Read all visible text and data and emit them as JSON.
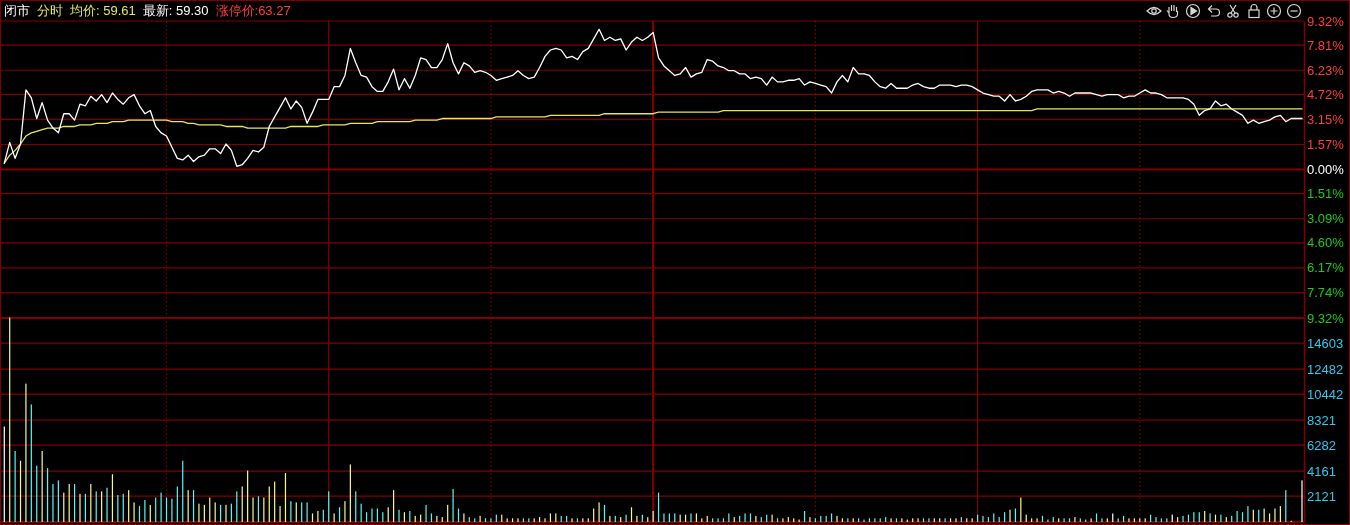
{
  "chart_data": [
    {
      "type": "line",
      "title": "分时",
      "annotations": [
        "闭市",
        "涨停价:63.27"
      ],
      "legend": "top left",
      "tick_labels": "y",
      "grid": "y",
      "categories": [
        null,
        null,
        null,
        null,
        null,
        null,
        null,
        null,
        null,
        null,
        null,
        null,
        null,
        null,
        null,
        null,
        null,
        null,
        null,
        null,
        null,
        null,
        null,
        null,
        null,
        null,
        null,
        null,
        null,
        null,
        null,
        null,
        null,
        null,
        null,
        null,
        null,
        null,
        null,
        null,
        null,
        null,
        null,
        null,
        null,
        null,
        null,
        null,
        null,
        null,
        null,
        null,
        null,
        null,
        null,
        null,
        null,
        null,
        null,
        null,
        null,
        null,
        null,
        null,
        null,
        null,
        null,
        null,
        null,
        null,
        null,
        null,
        null,
        null,
        null,
        null,
        null,
        null,
        null,
        null,
        null,
        null,
        null,
        null,
        null,
        null,
        null,
        null,
        null,
        null,
        null,
        null,
        null,
        null,
        null,
        null,
        null,
        null,
        null,
        null,
        null,
        null,
        null,
        null,
        null,
        null,
        null,
        null,
        null,
        null,
        null,
        null,
        null,
        null,
        null,
        null,
        null,
        null,
        null,
        null,
        null,
        null,
        null,
        null,
        null,
        null,
        null,
        null,
        null,
        null,
        null,
        null,
        null,
        null,
        null,
        null,
        null,
        null,
        null,
        null,
        null,
        null,
        null,
        null,
        null,
        null,
        null,
        null,
        null,
        null,
        null,
        null,
        null,
        null,
        null,
        null,
        null,
        null,
        null,
        null,
        null,
        null,
        null,
        null,
        null,
        null,
        null,
        null,
        null,
        null,
        null,
        null,
        null,
        null,
        null,
        null,
        null,
        null,
        null,
        null,
        null,
        null,
        null,
        null,
        null,
        null,
        null,
        null,
        null,
        null,
        null,
        null,
        null,
        null,
        null,
        null,
        null,
        null,
        null,
        null,
        null,
        null,
        null,
        null,
        null,
        null,
        null,
        null,
        null,
        null,
        null,
        null,
        null,
        null,
        null,
        null,
        null,
        null,
        null,
        null,
        null,
        null,
        null,
        null,
        null,
        null,
        null,
        null,
        null,
        null,
        null,
        null,
        null,
        null,
        null,
        null,
        null,
        null,
        null,
        null,
        null
      ],
      "series": [
        {
          "name": "均价: 59.61",
          "color": "#e6e65c",
          "values": [
            0.4,
            0.9,
            1.2,
            1.6,
            2.1,
            2.3,
            2.4,
            2.5,
            2.6,
            2.6,
            2.6,
            2.7,
            2.7,
            2.7,
            2.8,
            2.8,
            2.8,
            2.9,
            2.9,
            2.9,
            3.0,
            3.0,
            3.0,
            3.1,
            3.1,
            3.1,
            3.1,
            3.1,
            3.1,
            3.1,
            3.1,
            3.0,
            3.0,
            3.0,
            2.9,
            2.9,
            2.8,
            2.8,
            2.8,
            2.8,
            2.8,
            2.7,
            2.7,
            2.7,
            2.7,
            2.6,
            2.6,
            2.6,
            2.6,
            2.6,
            2.6,
            2.6,
            2.6,
            2.7,
            2.7,
            2.7,
            2.7,
            2.7,
            2.7,
            2.8,
            2.8,
            2.8,
            2.8,
            2.8,
            2.9,
            2.9,
            2.9,
            2.9,
            2.9,
            3.0,
            3.0,
            3.0,
            3.0,
            3.0,
            3.0,
            3.0,
            3.1,
            3.1,
            3.1,
            3.1,
            3.1,
            3.2,
            3.2,
            3.2,
            3.2,
            3.2,
            3.2,
            3.2,
            3.2,
            3.2,
            3.2,
            3.3,
            3.3,
            3.3,
            3.3,
            3.3,
            3.3,
            3.3,
            3.3,
            3.3,
            3.3,
            3.4,
            3.4,
            3.4,
            3.4,
            3.4,
            3.4,
            3.4,
            3.4,
            3.4,
            3.4,
            3.5,
            3.5,
            3.5,
            3.5,
            3.5,
            3.5,
            3.5,
            3.5,
            3.5,
            3.5,
            3.6,
            3.6,
            3.6,
            3.6,
            3.6,
            3.6,
            3.6,
            3.6,
            3.6,
            3.6,
            3.6,
            3.6,
            3.7,
            3.7,
            3.7,
            3.7,
            3.7,
            3.7,
            3.7,
            3.7,
            3.7,
            3.7,
            3.7,
            3.7,
            3.7,
            3.7,
            3.7,
            3.7,
            3.7,
            3.7,
            3.7,
            3.7,
            3.7,
            3.7,
            3.7,
            3.7,
            3.7,
            3.7,
            3.7,
            3.7,
            3.7,
            3.7,
            3.7,
            3.7,
            3.7,
            3.7,
            3.7,
            3.7,
            3.7,
            3.7,
            3.7,
            3.7,
            3.7,
            3.7,
            3.7,
            3.7,
            3.7,
            3.7,
            3.7,
            3.7,
            3.7,
            3.7,
            3.7,
            3.7,
            3.7,
            3.7,
            3.7,
            3.7,
            3.7,
            3.7,
            3.8,
            3.8,
            3.8,
            3.8,
            3.8,
            3.8,
            3.8,
            3.8,
            3.8,
            3.8,
            3.8,
            3.8,
            3.8,
            3.8,
            3.8,
            3.8,
            3.8,
            3.8,
            3.8,
            3.8,
            3.8,
            3.8,
            3.8,
            3.8,
            3.8,
            3.8,
            3.8,
            3.8,
            3.8,
            3.8,
            3.8,
            3.8,
            3.8,
            3.8,
            3.8,
            3.8,
            3.8,
            3.8,
            3.8,
            3.8,
            3.8,
            3.8,
            3.8,
            3.8,
            3.8,
            3.8,
            3.8,
            3.8,
            3.8,
            3.8
          ]
        },
        {
          "name": "最新: 59.30",
          "color": "#ffffff",
          "values": [
            0.4,
            1.7,
            0.7,
            1.6,
            5.0,
            4.5,
            3.2,
            4.2,
            3.1,
            2.6,
            2.3,
            3.5,
            3.5,
            3.1,
            4.1,
            4.0,
            4.6,
            4.3,
            4.7,
            4.2,
            4.8,
            4.4,
            4.1,
            4.5,
            4.7,
            4.0,
            3.5,
            3.7,
            2.7,
            2.3,
            2.1,
            1.4,
            0.7,
            0.6,
            0.9,
            0.5,
            0.8,
            0.9,
            1.3,
            1.3,
            1.0,
            1.6,
            1.2,
            0.2,
            0.3,
            0.7,
            1.2,
            1.1,
            1.4,
            2.7,
            3.3,
            3.9,
            4.5,
            3.8,
            4.3,
            3.9,
            2.9,
            3.6,
            4.4,
            4.4,
            4.4,
            5.2,
            5.2,
            5.9,
            7.6,
            6.7,
            5.9,
            5.8,
            5.2,
            4.9,
            4.9,
            5.5,
            6.3,
            5.0,
            5.7,
            5.1,
            5.9,
            7.0,
            6.9,
            6.4,
            6.4,
            6.9,
            7.9,
            6.7,
            6.0,
            6.7,
            6.5,
            6.1,
            6.2,
            6.1,
            5.9,
            5.6,
            5.7,
            5.8,
            5.9,
            6.2,
            5.9,
            5.7,
            5.8,
            6.4,
            7.1,
            7.5,
            7.6,
            7.5,
            7.0,
            7.1,
            6.9,
            7.4,
            7.6,
            8.2,
            8.8,
            8.1,
            8.3,
            8.1,
            8.2,
            7.5,
            8.0,
            8.3,
            8.1,
            8.3,
            8.6,
            7.0,
            6.5,
            6.2,
            5.9,
            6.0,
            6.4,
            5.8,
            6.0,
            6.1,
            6.9,
            6.8,
            6.5,
            6.4,
            6.2,
            6.2,
            6.0,
            6.0,
            5.7,
            5.8,
            5.7,
            5.3,
            5.8,
            5.5,
            5.5,
            5.6,
            5.6,
            5.7,
            5.3,
            5.5,
            5.4,
            5.3,
            5.2,
            4.8,
            5.5,
            5.9,
            5.5,
            6.4,
            6.0,
            6.0,
            5.9,
            5.5,
            5.2,
            5.1,
            5.4,
            5.1,
            5.1,
            5.1,
            5.3,
            5.4,
            5.2,
            5.1,
            5.1,
            5.3,
            5.3,
            5.3,
            5.2,
            5.3,
            5.3,
            5.2,
            5.0,
            4.8,
            4.7,
            4.6,
            4.6,
            4.3,
            4.7,
            4.3,
            4.4,
            4.6,
            4.9,
            5.0,
            5.0,
            5.0,
            4.8,
            4.9,
            4.8,
            4.6,
            4.8,
            4.8,
            4.8,
            4.8,
            4.7,
            4.6,
            4.7,
            4.7,
            4.7,
            4.5,
            4.6,
            4.6,
            4.8,
            5.0,
            4.8,
            4.8,
            4.7,
            4.5,
            4.5,
            4.5,
            4.5,
            4.4,
            4.1,
            3.4,
            3.7,
            3.8,
            4.3,
            4.0,
            4.1,
            3.8,
            3.6,
            3.4,
            2.9,
            3.1,
            2.9,
            3.0,
            3.1,
            3.3,
            3.4,
            3.0,
            3.2,
            3.2,
            3.2
          ]
        }
      ],
      "ylim": [
        -9.32,
        9.32
      ],
      "yticks": [
        {
          "value": 9.32,
          "label": "9.32%"
        },
        {
          "value": 7.81,
          "label": "7.81%"
        },
        {
          "value": 6.23,
          "label": "6.23%"
        },
        {
          "value": 4.72,
          "label": "4.72%"
        },
        {
          "value": 3.15,
          "label": "3.15%"
        },
        {
          "value": 1.57,
          "label": "1.57%"
        },
        {
          "value": 0,
          "label": "0.00%"
        },
        {
          "value": -1.51,
          "label": "1.51%"
        },
        {
          "value": -3.09,
          "label": "3.09%"
        },
        {
          "value": -4.6,
          "label": "4.60%"
        },
        {
          "value": -6.17,
          "label": "6.17%"
        },
        {
          "value": -7.74,
          "label": "7.74%"
        },
        {
          "value": -9.32,
          "label": "9.32%"
        }
      ]
    },
    {
      "type": "bar",
      "tick_labels": "y",
      "grid": "y",
      "categories": [
        null,
        null,
        null,
        null,
        null,
        null,
        null,
        null,
        null,
        null,
        null,
        null,
        null,
        null,
        null,
        null,
        null,
        null,
        null,
        null,
        null,
        null,
        null,
        null,
        null,
        null,
        null,
        null,
        null,
        null,
        null,
        null,
        null,
        null,
        null,
        null,
        null,
        null,
        null,
        null,
        null,
        null,
        null,
        null,
        null,
        null,
        null,
        null,
        null,
        null,
        null,
        null,
        null,
        null,
        null,
        null,
        null,
        null,
        null,
        null,
        null,
        null,
        null,
        null,
        null,
        null,
        null,
        null,
        null,
        null,
        null,
        null,
        null,
        null,
        null,
        null,
        null,
        null,
        null,
        null,
        null,
        null,
        null,
        null,
        null,
        null,
        null,
        null,
        null,
        null,
        null,
        null,
        null,
        null,
        null,
        null,
        null,
        null,
        null,
        null,
        null,
        null,
        null,
        null,
        null,
        null,
        null,
        null,
        null,
        null,
        null,
        null,
        null,
        null,
        null,
        null,
        null,
        null,
        null,
        null,
        null,
        null,
        null,
        null,
        null,
        null,
        null,
        null,
        null,
        null,
        null,
        null,
        null,
        null,
        null,
        null,
        null,
        null,
        null,
        null,
        null,
        null,
        null,
        null,
        null,
        null,
        null,
        null,
        null,
        null,
        null,
        null,
        null,
        null,
        null,
        null,
        null,
        null,
        null,
        null,
        null,
        null,
        null,
        null,
        null,
        null,
        null,
        null,
        null,
        null,
        null,
        null,
        null,
        null,
        null,
        null,
        null,
        null,
        null,
        null,
        null,
        null,
        null,
        null,
        null,
        null,
        null,
        null,
        null,
        null,
        null,
        null,
        null,
        null,
        null,
        null,
        null,
        null,
        null,
        null,
        null,
        null,
        null,
        null,
        null,
        null,
        null,
        null,
        null,
        null,
        null,
        null,
        null,
        null,
        null,
        null,
        null,
        null,
        null,
        null,
        null,
        null,
        null,
        null,
        null,
        null,
        null,
        null,
        null,
        null,
        null,
        null,
        null,
        null,
        null,
        null,
        null,
        null,
        null,
        null,
        null
      ],
      "values": [
        7800,
        16700,
        5800,
        5000,
        11300,
        9600,
        4600,
        5800,
        4400,
        3100,
        3400,
        2400,
        3100,
        3100,
        2300,
        2300,
        3100,
        2500,
        2500,
        2800,
        3900,
        2200,
        2300,
        2600,
        1600,
        1300,
        1800,
        1400,
        2000,
        2400,
        2000,
        1900,
        2900,
        5000,
        2600,
        2600,
        1500,
        1400,
        2000,
        1600,
        1400,
        1400,
        1500,
        2500,
        2900,
        4200,
        2000,
        2100,
        2000,
        2900,
        3300,
        1300,
        4000,
        1700,
        1600,
        1600,
        1600,
        700,
        900,
        1000,
        2500,
        700,
        1200,
        1700,
        4700,
        2500,
        1500,
        800,
        1100,
        1100,
        800,
        1200,
        2600,
        1000,
        800,
        900,
        500,
        600,
        1400,
        700,
        500,
        400,
        1400,
        2700,
        1100,
        700,
        400,
        300,
        500,
        300,
        300,
        600,
        600,
        300,
        300,
        300,
        300,
        300,
        300,
        400,
        300,
        700,
        700,
        500,
        500,
        300,
        300,
        300,
        300,
        1100,
        1600,
        1400,
        500,
        500,
        400,
        600,
        1200,
        500,
        600,
        400,
        900,
        2400,
        700,
        700,
        700,
        600,
        600,
        700,
        700,
        300,
        500,
        300,
        300,
        300,
        700,
        400,
        500,
        700,
        700,
        500,
        400,
        600,
        600,
        300,
        300,
        400,
        300,
        200,
        900,
        400,
        300,
        500,
        500,
        700,
        500,
        300,
        300,
        300,
        300,
        200,
        300,
        300,
        300,
        400,
        300,
        300,
        300,
        200,
        300,
        300,
        300,
        300,
        300,
        300,
        300,
        300,
        300,
        400,
        300,
        300,
        600,
        500,
        400,
        700,
        400,
        800,
        1000,
        1100,
        2000,
        600,
        300,
        300,
        500,
        200,
        400,
        300,
        300,
        300,
        400,
        300,
        200,
        300,
        700,
        300,
        300,
        700,
        300,
        500,
        300,
        300,
        300,
        300,
        600,
        400,
        300,
        300,
        600,
        400,
        500,
        600,
        800,
        800,
        900,
        700,
        600,
        600,
        400,
        500,
        900,
        800,
        1300,
        1000,
        1000,
        1100,
        700,
        1100,
        1300,
        2600,
        100,
        0,
        3400
      ],
      "colors": [
        "#ffffff",
        "#fafa82",
        "#54f8f8",
        "#fafa82",
        "#fafa82",
        "#54f8f8",
        "#54f8f8",
        "#fafa82",
        "#54f8f8",
        "#54f8f8",
        "#54f8f8",
        "#fafa82",
        "#fafa82",
        "#54f8f8",
        "#fafa82",
        "#54f8f8",
        "#fafa82",
        "#54f8f8",
        "#fafa82",
        "#54f8f8",
        "#fafa82",
        "#54f8f8",
        "#54f8f8",
        "#fafa82",
        "#fafa82",
        "#54f8f8",
        "#54f8f8",
        "#fafa82",
        "#54f8f8",
        "#54f8f8",
        "#54f8f8",
        "#54f8f8",
        "#54f8f8",
        "#54f8f8",
        "#fafa82",
        "#54f8f8",
        "#fafa82",
        "#fafa82",
        "#fafa82",
        "#fafa82",
        "#54f8f8",
        "#fafa82",
        "#54f8f8",
        "#54f8f8",
        "#fafa82",
        "#fafa82",
        "#fafa82",
        "#54f8f8",
        "#fafa82",
        "#fafa82",
        "#fafa82",
        "#fafa82",
        "#fafa82",
        "#54f8f8",
        "#fafa82",
        "#54f8f8",
        "#54f8f8",
        "#fafa82",
        "#fafa82",
        "#54f8f8",
        "#54f8f8",
        "#fafa82",
        "#54f8f8",
        "#fafa82",
        "#fafa82",
        "#54f8f8",
        "#54f8f8",
        "#54f8f8",
        "#54f8f8",
        "#54f8f8",
        "#54f8f8",
        "#fafa82",
        "#fafa82",
        "#54f8f8",
        "#fafa82",
        "#54f8f8",
        "#fafa82",
        "#fafa82",
        "#54f8f8",
        "#54f8f8",
        "#fafa82",
        "#fafa82",
        "#fafa82",
        "#54f8f8",
        "#54f8f8",
        "#fafa82",
        "#54f8f8",
        "#54f8f8",
        "#fafa82",
        "#54f8f8",
        "#54f8f8",
        "#54f8f8",
        "#fafa82",
        "#fafa82",
        "#fafa82",
        "#fafa82",
        "#54f8f8",
        "#54f8f8",
        "#fafa82",
        "#fafa82",
        "#fafa82",
        "#fafa82",
        "#fafa82",
        "#54f8f8",
        "#54f8f8",
        "#fafa82",
        "#54f8f8",
        "#fafa82",
        "#fafa82",
        "#fafa82",
        "#fafa82",
        "#54f8f8",
        "#fafa82",
        "#54f8f8",
        "#fafa82",
        "#54f8f8",
        "#fafa82",
        "#fafa82",
        "#54f8f8",
        "#fafa82",
        "#fafa82",
        "#54f8f8",
        "#54f8f8",
        "#54f8f8",
        "#54f8f8",
        "#fafa82",
        "#fafa82",
        "#54f8f8",
        "#fafa82",
        "#fafa82",
        "#fafa82",
        "#54f8f8",
        "#54f8f8",
        "#54f8f8",
        "#54f8f8",
        "#fafa82",
        "#54f8f8",
        "#54f8f8",
        "#54f8f8",
        "#fafa82",
        "#54f8f8",
        "#54f8f8",
        "#fafa82",
        "#54f8f8",
        "#fafa82",
        "#fafa82",
        "#fafa82",
        "#fafa82",
        "#54f8f8",
        "#fafa82",
        "#54f8f8",
        "#54f8f8",
        "#54f8f8",
        "#54f8f8",
        "#fafa82",
        "#fafa82",
        "#54f8f8",
        "#fafa82",
        "#54f8f8",
        "#54f8f8",
        "#54f8f8",
        "#54f8f8",
        "#54f8f8",
        "#54f8f8",
        "#fafa82",
        "#54f8f8",
        "#fafa82",
        "#fafa82",
        "#fafa82",
        "#fafa82",
        "#54f8f8",
        "#54f8f8",
        "#fafa82",
        "#fafa82",
        "#54f8f8",
        "#fafa82",
        "#fafa82",
        "#54f8f8",
        "#fafa82",
        "#fafa82",
        "#54f8f8",
        "#54f8f8",
        "#54f8f8",
        "#54f8f8",
        "#54f8f8",
        "#54f8f8",
        "#fafa82",
        "#54f8f8",
        "#fafa82",
        "#fafa82",
        "#fafa82",
        "#fafa82",
        "#54f8f8",
        "#54f8f8",
        "#54f8f8",
        "#fafa82",
        "#54f8f8",
        "#54f8f8",
        "#fafa82",
        "#54f8f8",
        "#54f8f8",
        "#fafa82",
        "#54f8f8",
        "#54f8f8",
        "#fafa82",
        "#ffffff",
        "#54f8f8",
        "#54f8f8",
        "#fafa82",
        "#fafa82",
        "#fafa82",
        "#fafa82",
        "#54f8f8",
        "#54f8f8",
        "#54f8f8",
        "#54f8f8",
        "#ffffff",
        "#fafa82",
        "#54f8f8",
        "#54f8f8",
        "#54f8f8",
        "#54f8f8",
        "#fafa82",
        "#54f8f8",
        "#fafa82",
        "#54f8f8",
        "#fafa82",
        "#54f8f8",
        "#54f8f8",
        "#54f8f8",
        "#54f8f8",
        "#fafa82",
        "#54f8f8",
        "#fafa82",
        "#fafa82",
        "#fafa82",
        "#fafa82",
        "#54f8f8",
        "#fafa82",
        "#fafa82",
        "#ffffff"
      ],
      "ylim": [
        0,
        16700
      ],
      "yticks": [
        2121,
        4161,
        6282,
        8321,
        10442,
        12482,
        14603
      ]
    }
  ]
}
